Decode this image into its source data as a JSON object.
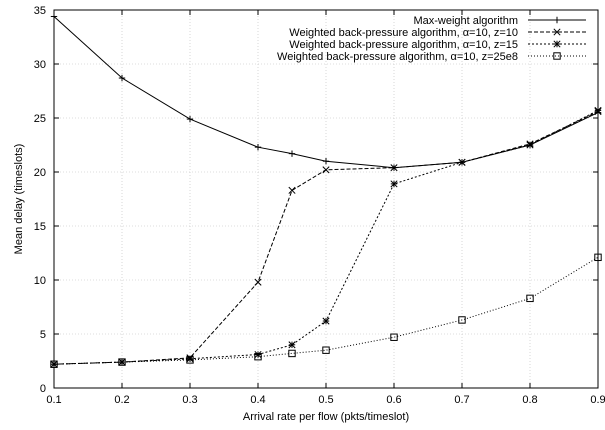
{
  "chart_data": {
    "type": "line",
    "xlabel": "Arrival rate per flow (pkts/timeslot)",
    "ylabel": "Mean delay (timeslots)",
    "xlim": [
      0.1,
      0.9
    ],
    "ylim": [
      0,
      35
    ],
    "xticks": [
      "0.1",
      "0.2",
      "0.3",
      "0.4",
      "0.5",
      "0.6",
      "0.7",
      "0.8",
      "0.9"
    ],
    "yticks": [
      "0",
      "5",
      "10",
      "15",
      "20",
      "25",
      "30",
      "35"
    ],
    "grid": true,
    "legend_position": "top-right",
    "series": [
      {
        "name": "Max-weight algorithm",
        "marker": "plus",
        "dash": "solid",
        "x": [
          0.1,
          0.2,
          0.3,
          0.4,
          0.45,
          0.5,
          0.6,
          0.7,
          0.8,
          0.9
        ],
        "y": [
          34.4,
          28.7,
          24.9,
          22.3,
          21.7,
          21.0,
          20.4,
          20.9,
          22.5,
          25.5
        ]
      },
      {
        "name": "Weighted back-pressure algorithm, α=10, z=10",
        "marker": "cross",
        "dash": "dashed",
        "x": [
          0.1,
          0.2,
          0.3,
          0.4,
          0.45,
          0.5,
          0.6,
          0.7,
          0.8,
          0.9
        ],
        "y": [
          2.2,
          2.4,
          2.8,
          9.8,
          18.3,
          20.2,
          20.4,
          20.9,
          22.6,
          25.6
        ]
      },
      {
        "name": "Weighted back-pressure algorithm, α=10, z=15",
        "marker": "star",
        "dash": "dotted-dash",
        "x": [
          0.1,
          0.2,
          0.3,
          0.4,
          0.45,
          0.5,
          0.6,
          0.7,
          0.8,
          0.9
        ],
        "y": [
          2.2,
          2.4,
          2.7,
          3.1,
          4.0,
          6.2,
          18.9,
          20.9,
          22.5,
          25.7
        ]
      },
      {
        "name": "Weighted back-pressure algorithm, α=10, z=25e8",
        "marker": "square",
        "dash": "dotted",
        "x": [
          0.1,
          0.2,
          0.3,
          0.4,
          0.45,
          0.5,
          0.6,
          0.7,
          0.8,
          0.9
        ],
        "y": [
          2.2,
          2.4,
          2.6,
          2.9,
          3.2,
          3.5,
          4.7,
          6.3,
          8.3,
          12.1
        ]
      }
    ]
  }
}
